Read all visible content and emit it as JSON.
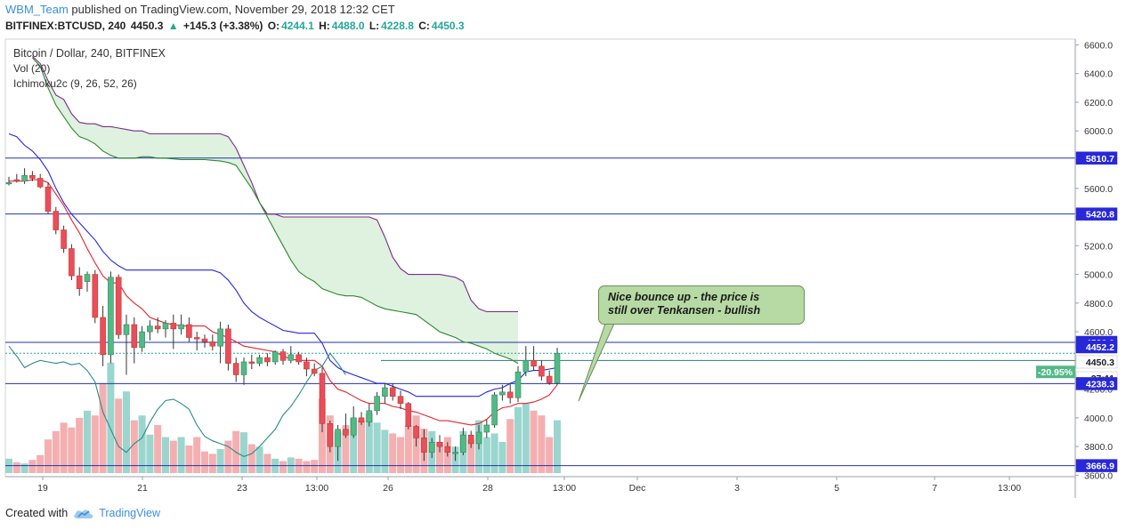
{
  "header": {
    "author": "WBM_Team",
    "published": "published on TradingView.com, November 29, 2018 12:32 CET",
    "symbol": "BITFINEX:BTCUSD, 240",
    "last": "4450.3",
    "change_arrow": "▲",
    "change": "+145.3 (+3.38%)",
    "open_label": "O:",
    "open": "4244.1",
    "high_label": "H:",
    "high": "4488.0",
    "low_label": "L:",
    "low": "4228.8",
    "close_label": "C:",
    "close": "4450.3"
  },
  "legend": {
    "title": "Bitcoin / Dollar, 240, BITFINEX",
    "vol": "Vol (20)",
    "ichimoku": "Ichimoku2c (9, 26, 52, 26)"
  },
  "note": {
    "text_line1": "Nice bounce up - the price is",
    "text_line2": "still over Tenkansen - bullish"
  },
  "footer": {
    "created_with": "Created with",
    "brand": "TradingView"
  },
  "colors": {
    "up": "#26a69a",
    "up_body": "#53b987",
    "down": "#eb4d5c",
    "tenkan": "#e3232c",
    "kijun": "#2626d9",
    "chikou": "#2b8a8a",
    "span_a": "#2a8a2a",
    "span_b": "#7a2a8a",
    "cloud": "#d9eed9",
    "hline": "#2233aa",
    "label_bg": "#2828d8",
    "accent": "#3a8fd9"
  },
  "chart_data": {
    "type": "candlestick",
    "ylim": [
      3590,
      6640
    ],
    "y_ticks": [
      "3600.0",
      "3800.0",
      "4000.0",
      "4200.0",
      "4400.0",
      "4600.0",
      "4800.0",
      "5000.0",
      "5200.0",
      "5400.0",
      "5600.0",
      "5800.0",
      "6000.0",
      "6200.0",
      "6400.0",
      "6600.0"
    ],
    "x_ticks": [
      "19",
      "21",
      "23",
      "13:00",
      "26",
      "28",
      "13:00",
      "Dec",
      "3",
      "5",
      "7",
      "13:00"
    ],
    "price_labels": [
      {
        "text": "5810.7",
        "value": 5810.7,
        "kind": "line"
      },
      {
        "text": "5420.8",
        "value": 5420.8,
        "kind": "line"
      },
      {
        "text": "4526.0",
        "value": 4526.0,
        "kind": "line"
      },
      {
        "text": "4452.2",
        "value": 4452.2,
        "kind": "line"
      },
      {
        "text": "4450.3",
        "value": 4450.3,
        "kind": "price"
      },
      {
        "text": "27:11",
        "value": 4260,
        "kind": "timer"
      },
      {
        "text": "4238.3",
        "value": 4238.3,
        "kind": "line"
      },
      {
        "text": "3666.9",
        "value": 3666.9,
        "kind": "line"
      }
    ],
    "percent_label": "-20.95%",
    "horizontal_lines": [
      5810.7,
      5420.8,
      4526.0,
      4238.3,
      3666.9
    ],
    "candles": [
      {
        "o": 5640,
        "h": 5680,
        "l": 5620,
        "c": 5640
      },
      {
        "o": 5660,
        "h": 5700,
        "l": 5640,
        "c": 5650
      },
      {
        "o": 5650,
        "h": 5740,
        "l": 5630,
        "c": 5690
      },
      {
        "o": 5690,
        "h": 5720,
        "l": 5650,
        "c": 5670
      },
      {
        "o": 5670,
        "h": 5700,
        "l": 5600,
        "c": 5610
      },
      {
        "o": 5610,
        "h": 5640,
        "l": 5420,
        "c": 5440
      },
      {
        "o": 5440,
        "h": 5470,
        "l": 5280,
        "c": 5310
      },
      {
        "o": 5310,
        "h": 5340,
        "l": 5150,
        "c": 5180
      },
      {
        "o": 5180,
        "h": 5210,
        "l": 4960,
        "c": 4990
      },
      {
        "o": 4990,
        "h": 5050,
        "l": 4850,
        "c": 4900
      },
      {
        "o": 4950,
        "h": 5020,
        "l": 4880,
        "c": 5000
      },
      {
        "o": 5000,
        "h": 5030,
        "l": 4660,
        "c": 4700
      },
      {
        "o": 4700,
        "h": 4780,
        "l": 4360,
        "c": 4440
      },
      {
        "o": 4440,
        "h": 5020,
        "l": 4380,
        "c": 4980
      },
      {
        "o": 4980,
        "h": 5000,
        "l": 4550,
        "c": 4580
      },
      {
        "o": 4580,
        "h": 4720,
        "l": 4300,
        "c": 4650
      },
      {
        "o": 4650,
        "h": 4700,
        "l": 4380,
        "c": 4490
      },
      {
        "o": 4490,
        "h": 4640,
        "l": 4460,
        "c": 4600
      },
      {
        "o": 4600,
        "h": 4680,
        "l": 4540,
        "c": 4640
      },
      {
        "o": 4640,
        "h": 4700,
        "l": 4590,
        "c": 4620
      },
      {
        "o": 4620,
        "h": 4680,
        "l": 4560,
        "c": 4660
      },
      {
        "o": 4660,
        "h": 4720,
        "l": 4480,
        "c": 4620
      },
      {
        "o": 4620,
        "h": 4720,
        "l": 4580,
        "c": 4650
      },
      {
        "o": 4650,
        "h": 4700,
        "l": 4530,
        "c": 4560
      },
      {
        "o": 4560,
        "h": 4600,
        "l": 4470,
        "c": 4550
      },
      {
        "o": 4550,
        "h": 4580,
        "l": 4490,
        "c": 4530
      },
      {
        "o": 4530,
        "h": 4580,
        "l": 4470,
        "c": 4500
      },
      {
        "o": 4500,
        "h": 4670,
        "l": 4380,
        "c": 4620
      },
      {
        "o": 4620,
        "h": 4650,
        "l": 4330,
        "c": 4380
      },
      {
        "o": 4380,
        "h": 4420,
        "l": 4250,
        "c": 4300
      },
      {
        "o": 4300,
        "h": 4420,
        "l": 4230,
        "c": 4390
      },
      {
        "o": 4390,
        "h": 4440,
        "l": 4340,
        "c": 4380
      },
      {
        "o": 4380,
        "h": 4440,
        "l": 4360,
        "c": 4420
      },
      {
        "o": 4420,
        "h": 4450,
        "l": 4360,
        "c": 4390
      },
      {
        "o": 4390,
        "h": 4470,
        "l": 4370,
        "c": 4460
      },
      {
        "o": 4460,
        "h": 4480,
        "l": 4370,
        "c": 4400
      },
      {
        "o": 4400,
        "h": 4500,
        "l": 4380,
        "c": 4440
      },
      {
        "o": 4440,
        "h": 4460,
        "l": 4370,
        "c": 4390
      },
      {
        "o": 4390,
        "h": 4420,
        "l": 4290,
        "c": 4340
      },
      {
        "o": 4340,
        "h": 4380,
        "l": 4290,
        "c": 4310
      },
      {
        "o": 4310,
        "h": 4350,
        "l": 3900,
        "c": 3960
      },
      {
        "o": 3960,
        "h": 3980,
        "l": 3760,
        "c": 3800
      },
      {
        "o": 3800,
        "h": 3950,
        "l": 3700,
        "c": 3920
      },
      {
        "o": 3920,
        "h": 4030,
        "l": 3860,
        "c": 3880
      },
      {
        "o": 3880,
        "h": 4080,
        "l": 3860,
        "c": 4000
      },
      {
        "o": 4000,
        "h": 4040,
        "l": 3950,
        "c": 3970
      },
      {
        "o": 3970,
        "h": 4100,
        "l": 3940,
        "c": 4050
      },
      {
        "o": 4050,
        "h": 4180,
        "l": 4020,
        "c": 4150
      },
      {
        "o": 4150,
        "h": 4240,
        "l": 4100,
        "c": 4210
      },
      {
        "o": 4210,
        "h": 4240,
        "l": 4120,
        "c": 4150
      },
      {
        "o": 4150,
        "h": 4190,
        "l": 4060,
        "c": 4100
      },
      {
        "o": 4100,
        "h": 4110,
        "l": 3920,
        "c": 3940
      },
      {
        "o": 3940,
        "h": 3950,
        "l": 3800,
        "c": 3860
      },
      {
        "o": 3860,
        "h": 3920,
        "l": 3700,
        "c": 3760
      },
      {
        "o": 3760,
        "h": 3860,
        "l": 3720,
        "c": 3830
      },
      {
        "o": 3830,
        "h": 3880,
        "l": 3760,
        "c": 3800
      },
      {
        "o": 3800,
        "h": 3830,
        "l": 3730,
        "c": 3760
      },
      {
        "o": 3760,
        "h": 3800,
        "l": 3700,
        "c": 3760
      },
      {
        "o": 3760,
        "h": 3930,
        "l": 3740,
        "c": 3880
      },
      {
        "o": 3880,
        "h": 3910,
        "l": 3790,
        "c": 3820
      },
      {
        "o": 3820,
        "h": 3950,
        "l": 3780,
        "c": 3900
      },
      {
        "o": 3900,
        "h": 3990,
        "l": 3860,
        "c": 3950
      },
      {
        "o": 3950,
        "h": 4180,
        "l": 3930,
        "c": 4160
      },
      {
        "o": 4160,
        "h": 4230,
        "l": 4120,
        "c": 4180
      },
      {
        "o": 4180,
        "h": 4240,
        "l": 4100,
        "c": 4140
      },
      {
        "o": 4140,
        "h": 4360,
        "l": 4110,
        "c": 4320
      },
      {
        "o": 4320,
        "h": 4500,
        "l": 4290,
        "c": 4400
      },
      {
        "o": 4400,
        "h": 4500,
        "l": 4330,
        "c": 4360
      },
      {
        "o": 4360,
        "h": 4400,
        "l": 4260,
        "c": 4290
      },
      {
        "o": 4290,
        "h": 4330,
        "l": 4230,
        "c": 4244
      },
      {
        "o": 4244,
        "h": 4488,
        "l": 4229,
        "c": 4450
      }
    ],
    "volume": [
      12,
      9,
      8,
      11,
      15,
      28,
      35,
      42,
      38,
      46,
      52,
      48,
      75,
      92,
      62,
      68,
      44,
      48,
      32,
      40,
      30,
      27,
      30,
      23,
      30,
      18,
      16,
      20,
      27,
      35,
      34,
      24,
      22,
      16,
      12,
      10,
      13,
      12,
      10,
      11,
      62,
      48,
      35,
      40,
      46,
      44,
      50,
      42,
      36,
      33,
      30,
      40,
      48,
      37,
      35,
      26,
      30,
      22,
      35,
      28,
      44,
      30,
      33,
      26,
      45,
      55,
      58,
      52,
      48,
      30,
      44
    ],
    "tenkan": [
      5650,
      5650,
      5650,
      5660,
      5660,
      5640,
      5560,
      5480,
      5380,
      5290,
      5180,
      5080,
      4990,
      4940,
      4940,
      4850,
      4800,
      4760,
      4700,
      4680,
      4660,
      4650,
      4640,
      4640,
      4640,
      4640,
      4600,
      4580,
      4560,
      4530,
      4500,
      4490,
      4480,
      4470,
      4460,
      4430,
      4410,
      4400,
      4400,
      4400,
      4360,
      4260,
      4200,
      4180,
      4150,
      4120,
      4100,
      4100,
      4100,
      4080,
      4070,
      4050,
      4040,
      4020,
      4000,
      3980,
      3980,
      3970,
      3960,
      3950,
      3960,
      3990,
      4040,
      4070,
      4080,
      4100,
      4100,
      4110,
      4130,
      4160,
      4230
    ],
    "kijun": [
      5980,
      5960,
      5900,
      5860,
      5800,
      5720,
      5600,
      5500,
      5420,
      5360,
      5300,
      5240,
      5160,
      5100,
      5060,
      5030,
      5030,
      5030,
      5030,
      5030,
      5030,
      5030,
      5030,
      5030,
      5030,
      5030,
      5030,
      5010,
      4960,
      4890,
      4800,
      4740,
      4700,
      4670,
      4640,
      4610,
      4600,
      4590,
      4590,
      4590,
      4520,
      4400,
      4350,
      4320,
      4300,
      4280,
      4260,
      4240,
      4240,
      4220,
      4200,
      4180,
      4150,
      4150,
      4150,
      4150,
      4150,
      4150,
      4150,
      4150,
      4150,
      4180,
      4200,
      4210,
      4240,
      4260,
      4320,
      4330,
      4330,
      4340,
      4350
    ],
    "chikou_start_index": 0,
    "chikou": [
      4500,
      4430,
      4350,
      4380,
      4400,
      4390,
      4380,
      4390,
      4370,
      4380,
      4330,
      4250,
      4040,
      3920,
      3800,
      3760,
      3820,
      3860,
      3970,
      4060,
      4120,
      4130,
      4100,
      4060,
      3950,
      3870,
      3840,
      3820,
      3800,
      3760,
      3730,
      3750,
      3800,
      3860,
      3920,
      4020,
      4080,
      4160,
      4250,
      4330,
      4360,
      4450,
      4380,
      4300
    ],
    "span_a_start_index": 3,
    "span_a": [
      6510,
      6450,
      6300,
      6180,
      6100,
      6020,
      5960,
      5940,
      5910,
      5860,
      5830,
      5810,
      5810,
      5810,
      5820,
      5820,
      5810,
      5810,
      5805,
      5800,
      5800,
      5800,
      5800,
      5795,
      5790,
      5780,
      5760,
      5680,
      5600,
      5500,
      5400,
      5300,
      5200,
      5100,
      5020,
      4980,
      4950,
      4900,
      4880,
      4860,
      4850,
      4850,
      4840,
      4810,
      4780,
      4760,
      4750,
      4740,
      4730,
      4720,
      4680,
      4640,
      4600,
      4580,
      4560,
      4530,
      4520,
      4500,
      4480,
      4450,
      4430,
      4410,
      4380
    ],
    "span_b_start_index": 3,
    "span_b": [
      6520,
      6470,
      6350,
      6250,
      6220,
      6120,
      6060,
      6050,
      6050,
      6030,
      6030,
      6020,
      6010,
      6000,
      6000,
      5980,
      5980,
      5980,
      5980,
      5980,
      5980,
      5980,
      5980,
      5980,
      5980,
      5960,
      5880,
      5760,
      5640,
      5500,
      5420,
      5420,
      5400,
      5400,
      5400,
      5400,
      5400,
      5400,
      5400,
      5400,
      5400,
      5400,
      5400,
      5400,
      5380,
      5260,
      5120,
      5040,
      5000,
      5000,
      5000,
      5000,
      5000,
      4990,
      4980,
      4950,
      4820,
      4760,
      4740,
      4740,
      4740,
      4740,
      4740
    ]
  }
}
